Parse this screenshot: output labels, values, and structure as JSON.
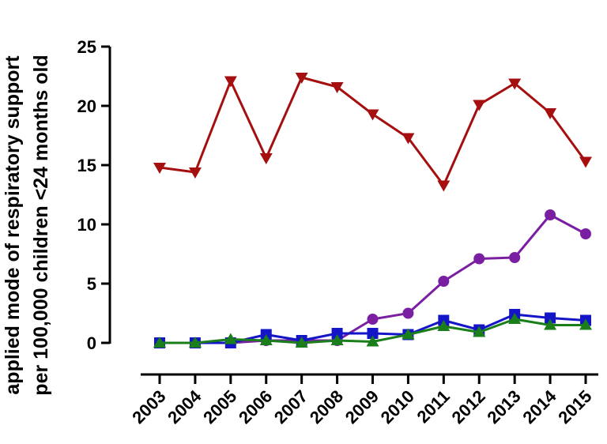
{
  "chart_data": {
    "type": "line",
    "title": "",
    "xlabel": "",
    "ylabel_lines": [
      "applied mode of respiratory support",
      "per 100,000 children <24 months old"
    ],
    "ylim": [
      0,
      25
    ],
    "yticks": [
      0,
      5,
      10,
      15,
      20,
      25
    ],
    "x": [
      "2003",
      "2004",
      "2005",
      "2006",
      "2007",
      "2008",
      "2009",
      "2010",
      "2011",
      "2012",
      "2013",
      "2014",
      "2015"
    ],
    "grid": false,
    "legend": "none",
    "series": [
      {
        "color": "#a50f0f",
        "marker": "triangle-down",
        "values": [
          14.8,
          14.4,
          22.1,
          15.6,
          22.4,
          21.6,
          19.3,
          17.3,
          13.3,
          20.1,
          21.9,
          19.4,
          15.3
        ]
      },
      {
        "color": "#7b1fa2",
        "marker": "circle",
        "values": [
          0.0,
          0.0,
          0.0,
          0.2,
          0.2,
          0.2,
          2.0,
          2.5,
          5.2,
          7.1,
          7.2,
          10.8,
          9.2
        ]
      },
      {
        "color": "#1515c8",
        "marker": "square",
        "values": [
          0.0,
          0.0,
          0.0,
          0.7,
          0.2,
          0.8,
          0.8,
          0.7,
          1.9,
          1.1,
          2.4,
          2.1,
          1.9
        ]
      },
      {
        "color": "#1a7f1a",
        "marker": "triangle-up",
        "values": [
          0.0,
          0.0,
          0.3,
          0.2,
          0.0,
          0.2,
          0.1,
          0.7,
          1.4,
          0.9,
          2.0,
          1.5,
          1.5
        ]
      }
    ]
  }
}
